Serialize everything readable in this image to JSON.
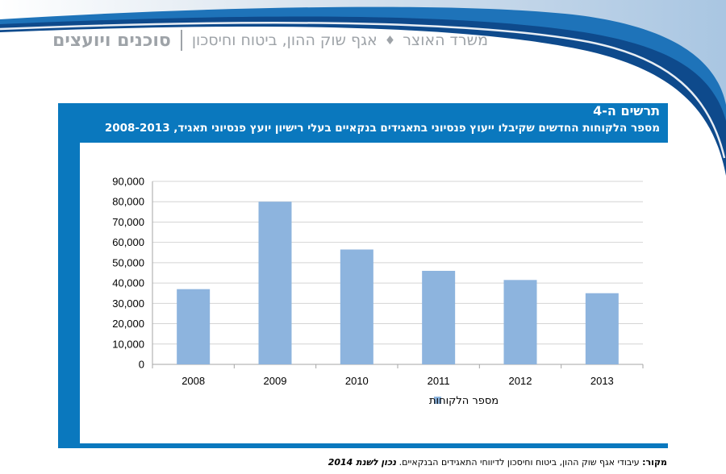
{
  "header": {
    "ministry": "משרד האוצר",
    "division": "אגף שוק ההון, ביטוח וחיסכון",
    "section": "סוכנים ויועצים",
    "colors": {
      "light_blue": "#b9d5ea",
      "mid_blue": "#1e73b9",
      "dark_blue": "#0e4a8c",
      "text_gray": "#9ea3a8"
    }
  },
  "figure": {
    "label": "תרשים ה-4",
    "title": "מספר הלקוחות החדשים שקיבלו ייעוץ פנסיוני בתאגידים בנקאיים בעלי רישיון יועץ פנסיוני תאגיד, 2008-2013",
    "frame_color": "#0a78be"
  },
  "chart_data": {
    "type": "bar",
    "categories": [
      "2008",
      "2009",
      "2010",
      "2011",
      "2012",
      "2013"
    ],
    "series": [
      {
        "name": "מספר הלקוחות",
        "values": [
          37000,
          80000,
          56500,
          46000,
          41500,
          35000
        ],
        "color": "#8db4de"
      }
    ],
    "ylim": [
      0,
      90000
    ],
    "yticks": [
      0,
      10000,
      20000,
      30000,
      40000,
      50000,
      60000,
      70000,
      80000,
      90000
    ],
    "ytick_labels": [
      "0",
      "10,000",
      "20,000",
      "30,000",
      "40,000",
      "50,000",
      "60,000",
      "70,000",
      "80,000",
      "90,000"
    ],
    "grid": true,
    "legend": "bottom"
  },
  "source": {
    "label": "מקור:",
    "text": "עיבודי אגף שוק ההון, ביטוח וחיסכון לדיווחי התאגידים הבנקאיים.",
    "date": "נכון לשנת 2014"
  }
}
